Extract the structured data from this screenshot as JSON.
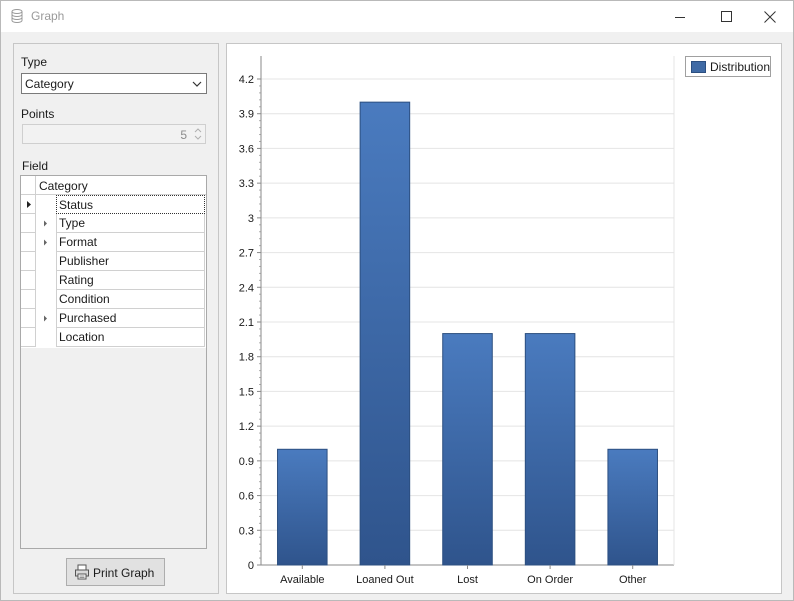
{
  "window": {
    "title": "Graph",
    "icon": "database-icon"
  },
  "left_panel": {
    "type_label": "Type",
    "type_value": "Category",
    "points_label": "Points",
    "points_value": "5",
    "field_label": "Field",
    "grid_header": "Category",
    "rows": [
      {
        "label": "Status",
        "expandable": false,
        "selected": true
      },
      {
        "label": "Type",
        "expandable": true,
        "selected": false
      },
      {
        "label": "Format",
        "expandable": true,
        "selected": false
      },
      {
        "label": "Publisher",
        "expandable": false,
        "selected": false
      },
      {
        "label": "Rating",
        "expandable": false,
        "selected": false
      },
      {
        "label": "Condition",
        "expandable": false,
        "selected": false
      },
      {
        "label": "Purchased",
        "expandable": true,
        "selected": false
      },
      {
        "label": "Location",
        "expandable": false,
        "selected": false
      }
    ],
    "print_button": "Print Graph"
  },
  "colors": {
    "bar": "#3f6aa5",
    "bar_dark": "#2f548c"
  },
  "chart_data": {
    "type": "bar",
    "categories": [
      "Available",
      "Loaned Out",
      "Lost",
      "On Order",
      "Other"
    ],
    "series": [
      {
        "name": "Distribution",
        "values": [
          1,
          4,
          2,
          2,
          1
        ]
      }
    ],
    "ylim": [
      0,
      4.2
    ],
    "yticks": [
      "0",
      "0.3",
      "0.6",
      "0.9",
      "1.2",
      "1.5",
      "1.8",
      "2.1",
      "2.4",
      "2.7",
      "3",
      "3.3",
      "3.6",
      "3.9",
      "4.2"
    ],
    "grid": true,
    "legend": "top-right"
  }
}
